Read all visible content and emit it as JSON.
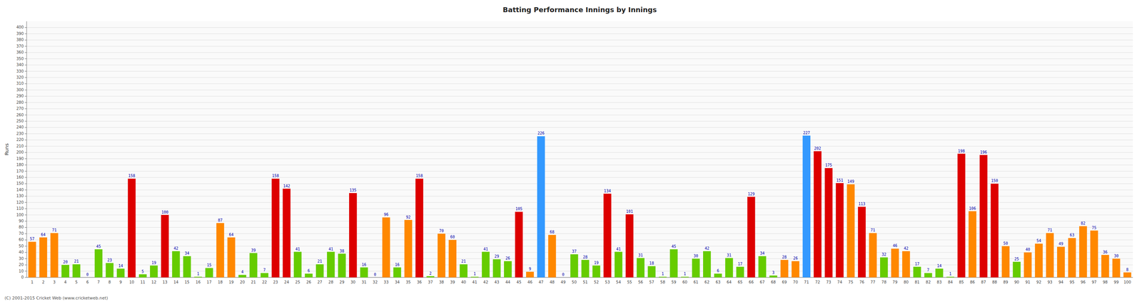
{
  "chart_data": {
    "type": "bar",
    "title": "Batting Performance Innings by Innings",
    "y_label": "Runs",
    "categories": [
      1,
      2,
      3,
      4,
      5,
      6,
      7,
      8,
      9,
      10,
      11,
      12,
      13,
      14,
      15,
      16,
      17,
      18,
      19,
      20,
      21,
      22,
      23,
      24,
      25,
      26,
      27,
      28,
      29,
      30,
      31,
      32,
      33,
      34,
      35,
      36,
      37,
      38,
      39,
      40,
      41,
      42,
      43,
      44,
      45,
      46,
      47,
      48,
      49,
      50,
      51,
      52,
      53,
      54,
      55,
      56,
      57,
      58,
      59,
      60,
      61,
      62,
      63,
      64,
      65,
      66,
      67,
      68,
      69,
      70,
      71,
      72,
      73,
      74,
      75,
      76,
      77,
      78,
      79,
      80,
      81,
      82,
      83,
      84,
      85,
      86,
      87,
      88,
      89,
      90,
      91,
      92,
      93,
      94,
      95,
      96,
      97,
      98,
      99,
      100
    ],
    "values": [
      57,
      64,
      71,
      20,
      21,
      0,
      45,
      23,
      14,
      158,
      5,
      19,
      100,
      42,
      34,
      1,
      15,
      87,
      64,
      4,
      39,
      7,
      158,
      142,
      41,
      6,
      21,
      41,
      38,
      135,
      16,
      0,
      96,
      16,
      92,
      158,
      2,
      70,
      60,
      21,
      1,
      41,
      29,
      26,
      105,
      9,
      226,
      68,
      0,
      37,
      28,
      19,
      134,
      41,
      101,
      31,
      18,
      1,
      45,
      1,
      30,
      42,
      6,
      31,
      17,
      129,
      34,
      3,
      28,
      26,
      227,
      202,
      175,
      151,
      149,
      113,
      71,
      32,
      46,
      42,
      17,
      7,
      14,
      1,
      198,
      106,
      196,
      150,
      50,
      25,
      40,
      54,
      71,
      49,
      63,
      82,
      75,
      36,
      30,
      8
    ],
    "colors": [
      "#ff8800",
      "#ff8800",
      "#ff8800",
      "#66cc00",
      "#66cc00",
      "#66cc00",
      "#66cc00",
      "#66cc00",
      "#66cc00",
      "#dd0000",
      "#66cc00",
      "#66cc00",
      "#dd0000",
      "#66cc00",
      "#66cc00",
      "#66cc00",
      "#66cc00",
      "#ff8800",
      "#ff8800",
      "#66cc00",
      "#66cc00",
      "#66cc00",
      "#dd0000",
      "#dd0000",
      "#66cc00",
      "#66cc00",
      "#66cc00",
      "#66cc00",
      "#66cc00",
      "#dd0000",
      "#66cc00",
      "#66cc00",
      "#ff8800",
      "#66cc00",
      "#ff8800",
      "#dd0000",
      "#66cc00",
      "#ff8800",
      "#ff8800",
      "#66cc00",
      "#66cc00",
      "#66cc00",
      "#66cc00",
      "#66cc00",
      "#dd0000",
      "#ff8800",
      "#3399ff",
      "#ff8800",
      "#66cc00",
      "#66cc00",
      "#66cc00",
      "#66cc00",
      "#dd0000",
      "#66cc00",
      "#dd0000",
      "#66cc00",
      "#66cc00",
      "#66cc00",
      "#66cc00",
      "#66cc00",
      "#66cc00",
      "#66cc00",
      "#66cc00",
      "#66cc00",
      "#66cc00",
      "#dd0000",
      "#66cc00",
      "#66cc00",
      "#ff8800",
      "#ff8800",
      "#3399ff",
      "#dd0000",
      "#dd0000",
      "#dd0000",
      "#ff8800",
      "#dd0000",
      "#ff8800",
      "#66cc00",
      "#ff8800",
      "#ff8800",
      "#66cc00",
      "#66cc00",
      "#66cc00",
      "#66cc00",
      "#dd0000",
      "#ff8800",
      "#dd0000",
      "#dd0000",
      "#ff8800",
      "#66cc00",
      "#ff8800",
      "#ff8800",
      "#ff8800",
      "#ff8800",
      "#ff8800",
      "#ff8800",
      "#ff8800",
      "#ff8800",
      "#ff8800",
      "#ff8800"
    ],
    "ylim": [
      0,
      410
    ],
    "yticks": [
      0,
      10,
      20,
      30,
      40,
      50,
      60,
      70,
      80,
      90,
      100,
      110,
      120,
      130,
      140,
      150,
      160,
      170,
      180,
      190,
      200,
      210,
      220,
      230,
      240,
      250,
      260,
      270,
      280,
      290,
      300,
      310,
      320,
      330,
      340,
      350,
      360,
      370,
      380,
      390,
      400
    ],
    "grid": true,
    "data_labels": true,
    "annotations": [
      "(C) 2001-2015 Cricket Web (www.cricketweb.net)"
    ]
  }
}
